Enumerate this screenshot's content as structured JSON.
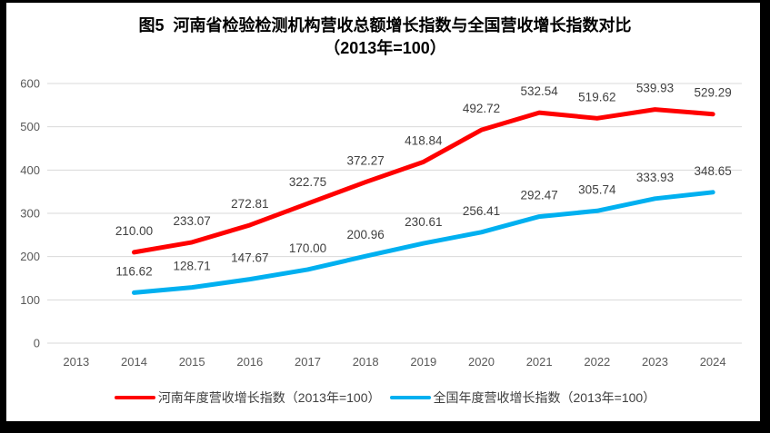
{
  "title": {
    "line1": "图5  河南省检验检测机构营收总额增长指数与全国营收增长指数对比",
    "line2": "（2013年=100）"
  },
  "chart_data": {
    "type": "line",
    "x_categories": [
      "2013",
      "2014",
      "2015",
      "2016",
      "2017",
      "2018",
      "2019",
      "2020",
      "2021",
      "2022",
      "2023",
      "2024"
    ],
    "note": "series plotted from 2014; 2013 is the base year (=100) with no plotted point",
    "series": [
      {
        "id": "henan-index",
        "name": "河南年度营收增长指数（2013年=100）",
        "color": "#FF0000",
        "start_category": "2014",
        "values": [
          210.0,
          233.07,
          272.81,
          322.75,
          372.27,
          418.84,
          492.72,
          532.54,
          519.62,
          539.93,
          529.29
        ]
      },
      {
        "id": "national-index",
        "name": "全国年度营收增长指数（2013年=100）",
        "color": "#00B0F0",
        "start_category": "2014",
        "values": [
          116.62,
          128.71,
          147.67,
          170.0,
          200.96,
          230.61,
          256.41,
          292.47,
          305.74,
          333.93,
          348.65
        ]
      }
    ],
    "ylim": [
      0,
      600
    ],
    "y_ticks": [
      0,
      100,
      200,
      300,
      400,
      500,
      600
    ],
    "grid": "horizontal",
    "legend_position": "bottom",
    "data_labels": true,
    "label_decimals": 2
  },
  "style": {
    "gridline_color": "#D9D9D9",
    "axis_label_color": "#595959",
    "data_label_color": "#404040",
    "border_color": "#000000",
    "background": "#FFFFFF"
  }
}
